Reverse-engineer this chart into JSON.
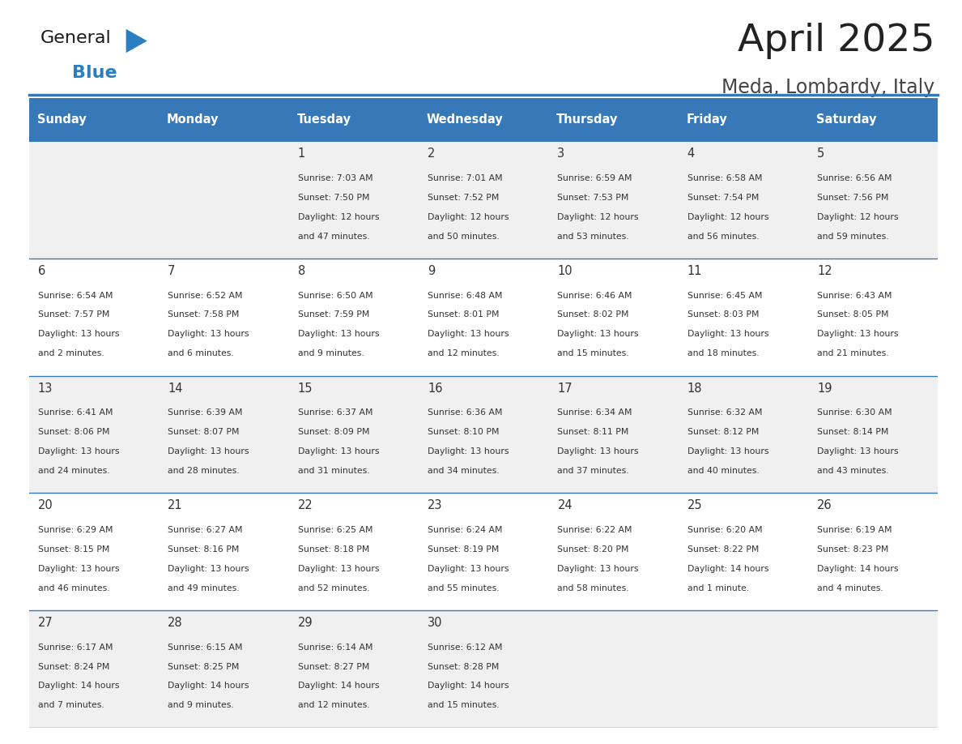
{
  "title": "April 2025",
  "subtitle": "Meda, Lombardy, Italy",
  "days_of_week": [
    "Sunday",
    "Monday",
    "Tuesday",
    "Wednesday",
    "Thursday",
    "Friday",
    "Saturday"
  ],
  "header_bg": "#3778b8",
  "header_text_color": "#ffffff",
  "cell_bg_even": "#f0f0f0",
  "cell_bg_odd": "#ffffff",
  "row_line_color": "#3778b8",
  "text_color": "#333333",
  "title_color": "#222222",
  "subtitle_color": "#444444",
  "logo_general_color": "#1a1a1a",
  "logo_blue_color": "#2b7fc0",
  "calendar_data": [
    [
      {
        "day": null,
        "sunrise": null,
        "sunset": null,
        "daylight": null
      },
      {
        "day": null,
        "sunrise": null,
        "sunset": null,
        "daylight": null
      },
      {
        "day": 1,
        "sunrise": "7:03 AM",
        "sunset": "7:50 PM",
        "daylight": "12 hours and 47 minutes."
      },
      {
        "day": 2,
        "sunrise": "7:01 AM",
        "sunset": "7:52 PM",
        "daylight": "12 hours and 50 minutes."
      },
      {
        "day": 3,
        "sunrise": "6:59 AM",
        "sunset": "7:53 PM",
        "daylight": "12 hours and 53 minutes."
      },
      {
        "day": 4,
        "sunrise": "6:58 AM",
        "sunset": "7:54 PM",
        "daylight": "12 hours and 56 minutes."
      },
      {
        "day": 5,
        "sunrise": "6:56 AM",
        "sunset": "7:56 PM",
        "daylight": "12 hours and 59 minutes."
      }
    ],
    [
      {
        "day": 6,
        "sunrise": "6:54 AM",
        "sunset": "7:57 PM",
        "daylight": "13 hours and 2 minutes."
      },
      {
        "day": 7,
        "sunrise": "6:52 AM",
        "sunset": "7:58 PM",
        "daylight": "13 hours and 6 minutes."
      },
      {
        "day": 8,
        "sunrise": "6:50 AM",
        "sunset": "7:59 PM",
        "daylight": "13 hours and 9 minutes."
      },
      {
        "day": 9,
        "sunrise": "6:48 AM",
        "sunset": "8:01 PM",
        "daylight": "13 hours and 12 minutes."
      },
      {
        "day": 10,
        "sunrise": "6:46 AM",
        "sunset": "8:02 PM",
        "daylight": "13 hours and 15 minutes."
      },
      {
        "day": 11,
        "sunrise": "6:45 AM",
        "sunset": "8:03 PM",
        "daylight": "13 hours and 18 minutes."
      },
      {
        "day": 12,
        "sunrise": "6:43 AM",
        "sunset": "8:05 PM",
        "daylight": "13 hours and 21 minutes."
      }
    ],
    [
      {
        "day": 13,
        "sunrise": "6:41 AM",
        "sunset": "8:06 PM",
        "daylight": "13 hours and 24 minutes."
      },
      {
        "day": 14,
        "sunrise": "6:39 AM",
        "sunset": "8:07 PM",
        "daylight": "13 hours and 28 minutes."
      },
      {
        "day": 15,
        "sunrise": "6:37 AM",
        "sunset": "8:09 PM",
        "daylight": "13 hours and 31 minutes."
      },
      {
        "day": 16,
        "sunrise": "6:36 AM",
        "sunset": "8:10 PM",
        "daylight": "13 hours and 34 minutes."
      },
      {
        "day": 17,
        "sunrise": "6:34 AM",
        "sunset": "8:11 PM",
        "daylight": "13 hours and 37 minutes."
      },
      {
        "day": 18,
        "sunrise": "6:32 AM",
        "sunset": "8:12 PM",
        "daylight": "13 hours and 40 minutes."
      },
      {
        "day": 19,
        "sunrise": "6:30 AM",
        "sunset": "8:14 PM",
        "daylight": "13 hours and 43 minutes."
      }
    ],
    [
      {
        "day": 20,
        "sunrise": "6:29 AM",
        "sunset": "8:15 PM",
        "daylight": "13 hours and 46 minutes."
      },
      {
        "day": 21,
        "sunrise": "6:27 AM",
        "sunset": "8:16 PM",
        "daylight": "13 hours and 49 minutes."
      },
      {
        "day": 22,
        "sunrise": "6:25 AM",
        "sunset": "8:18 PM",
        "daylight": "13 hours and 52 minutes."
      },
      {
        "day": 23,
        "sunrise": "6:24 AM",
        "sunset": "8:19 PM",
        "daylight": "13 hours and 55 minutes."
      },
      {
        "day": 24,
        "sunrise": "6:22 AM",
        "sunset": "8:20 PM",
        "daylight": "13 hours and 58 minutes."
      },
      {
        "day": 25,
        "sunrise": "6:20 AM",
        "sunset": "8:22 PM",
        "daylight": "14 hours and 1 minute."
      },
      {
        "day": 26,
        "sunrise": "6:19 AM",
        "sunset": "8:23 PM",
        "daylight": "14 hours and 4 minutes."
      }
    ],
    [
      {
        "day": 27,
        "sunrise": "6:17 AM",
        "sunset": "8:24 PM",
        "daylight": "14 hours and 7 minutes."
      },
      {
        "day": 28,
        "sunrise": "6:15 AM",
        "sunset": "8:25 PM",
        "daylight": "14 hours and 9 minutes."
      },
      {
        "day": 29,
        "sunrise": "6:14 AM",
        "sunset": "8:27 PM",
        "daylight": "14 hours and 12 minutes."
      },
      {
        "day": 30,
        "sunrise": "6:12 AM",
        "sunset": "8:28 PM",
        "daylight": "14 hours and 15 minutes."
      },
      {
        "day": null,
        "sunrise": null,
        "sunset": null,
        "daylight": null
      },
      {
        "day": null,
        "sunrise": null,
        "sunset": null,
        "daylight": null
      },
      {
        "day": null,
        "sunrise": null,
        "sunset": null,
        "daylight": null
      }
    ]
  ]
}
